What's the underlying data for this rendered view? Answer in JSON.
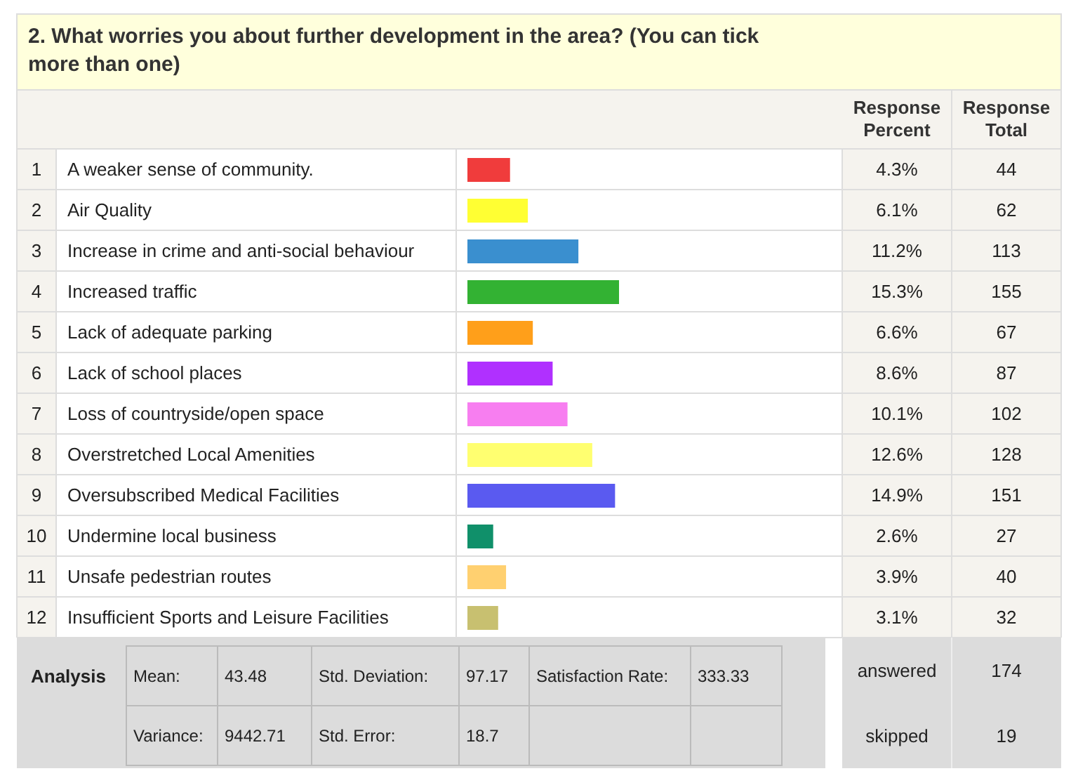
{
  "chart_data": {
    "type": "bar",
    "orientation": "horizontal",
    "title": "2. What worries you about further development in the area? (You can tick more than one)",
    "categories": [
      "A weaker sense of community.",
      "Air Quality",
      "Increase in crime and anti-social behaviour",
      "Increased traffic",
      "Lack of adequate parking",
      "Lack of school places",
      "Loss of countryside/open space",
      "Overstretched Local Amenities",
      "Oversubscribed Medical Facilities",
      "Undermine local business",
      "Unsafe pedestrian routes",
      "Insufficient Sports and Leisure Facilities"
    ],
    "values": [
      4.3,
      6.1,
      11.2,
      15.3,
      6.6,
      8.6,
      10.1,
      12.6,
      14.9,
      2.6,
      3.9,
      3.1
    ],
    "colors": [
      "#f03c3c",
      "#ffff33",
      "#3a8fcf",
      "#33b233",
      "#ff9f1a",
      "#b030ff",
      "#f77ef0",
      "#ffff70",
      "#5a5af0",
      "#10906a",
      "#ffd070",
      "#c8c070"
    ],
    "value_labels": [
      "4.3%",
      "6.1%",
      "11.2%",
      "15.3%",
      "6.6%",
      "8.6%",
      "10.1%",
      "12.6%",
      "14.9%",
      "2.6%",
      "3.9%",
      "3.1%"
    ],
    "annotations": [
      "Response Percent",
      "Response Total",
      "1",
      "2",
      "3",
      "4",
      "5",
      "6",
      "7",
      "8",
      "9",
      "10",
      "11",
      "12",
      "44",
      "62",
      "113",
      "155",
      "67",
      "87",
      "102",
      "128",
      "151",
      "27",
      "40",
      "32",
      "Analysis",
      "Mean:",
      "43.48",
      "Std. Deviation:",
      "97.17",
      "Satisfaction Rate:",
      "333.33",
      "Variance:",
      "9442.71",
      "Std. Error:",
      "18.7",
      "answered",
      "174",
      "skipped",
      "19"
    ]
  }
}
